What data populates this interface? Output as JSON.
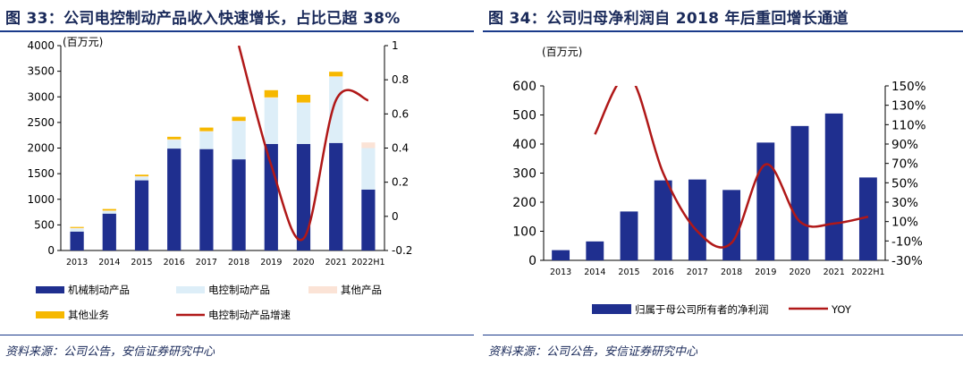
{
  "left": {
    "title": "图 33：公司电控制动产品收入快速增长，占比已超 38%",
    "source": "资料来源：公司公告，安信证券研究中心",
    "chart_data": {
      "type": "bar",
      "stacked": true,
      "unit_label": "(百万元)",
      "categories": [
        "2013",
        "2014",
        "2015",
        "2016",
        "2017",
        "2018",
        "2019",
        "2020",
        "2021",
        "2022H1"
      ],
      "ylim": [
        0,
        4000
      ],
      "y_ticks": [
        0,
        500,
        1000,
        1500,
        2000,
        2500,
        3000,
        3500,
        4000
      ],
      "y2lim": [
        -0.2,
        1.0
      ],
      "y2_ticks": [
        -0.2,
        0,
        0.2,
        0.4,
        0.6,
        0.8,
        1
      ],
      "series": [
        {
          "name": "机械制动产品",
          "values": [
            370,
            720,
            1370,
            1990,
            1980,
            1780,
            2080,
            2080,
            2100,
            1190
          ],
          "color": "#1f2f8f"
        },
        {
          "name": "电控制动产品",
          "values": [
            60,
            50,
            70,
            170,
            340,
            740,
            900,
            800,
            1290,
            810
          ],
          "color": "#ddeef8"
        },
        {
          "name": "其他产品",
          "values": [
            10,
            10,
            10,
            10,
            10,
            10,
            10,
            10,
            10,
            110
          ],
          "color": "#fbe3d6"
        },
        {
          "name": "其他业务",
          "values": [
            20,
            30,
            30,
            50,
            70,
            80,
            140,
            150,
            90,
            0
          ],
          "color": "#f6b800"
        }
      ],
      "line_series": {
        "name": "电控制动产品增速",
        "axis": "right",
        "color": "#b01818",
        "values": [
          null,
          null,
          null,
          null,
          null,
          1.0,
          0.3,
          -0.13,
          0.68,
          0.68
        ]
      },
      "legend_position": "bottom"
    }
  },
  "right": {
    "title": "图 34：公司归母净利润自 2018 年后重回增长通道",
    "source": "资料来源：公司公告，安信证券研究中心",
    "chart_data": {
      "type": "bar",
      "unit_label": "(百万元)",
      "categories": [
        "2013",
        "2014",
        "2015",
        "2016",
        "2017",
        "2018",
        "2019",
        "2020",
        "2021",
        "2022H1"
      ],
      "ylim": [
        0,
        600
      ],
      "y_ticks": [
        0,
        100,
        200,
        300,
        400,
        500,
        600
      ],
      "y2lim": [
        -30,
        150
      ],
      "y2_ticks": [
        "-30%",
        "-10%",
        "10%",
        "30%",
        "50%",
        "70%",
        "90%",
        "110%",
        "130%",
        "150%"
      ],
      "y2_values": [
        -30,
        -10,
        10,
        30,
        50,
        70,
        90,
        110,
        130,
        150
      ],
      "series": [
        {
          "name": "归属于母公司所有者的净利润",
          "values": [
            35,
            65,
            168,
            275,
            278,
            242,
            405,
            462,
            505,
            285
          ],
          "color": "#1f2f8f"
        }
      ],
      "line_series": {
        "name": "YOY",
        "axis": "right",
        "color": "#b01818",
        "values": [
          null,
          100,
          160,
          60,
          0,
          -12,
          69,
          10,
          8,
          15
        ]
      },
      "legend_position": "bottom"
    }
  }
}
